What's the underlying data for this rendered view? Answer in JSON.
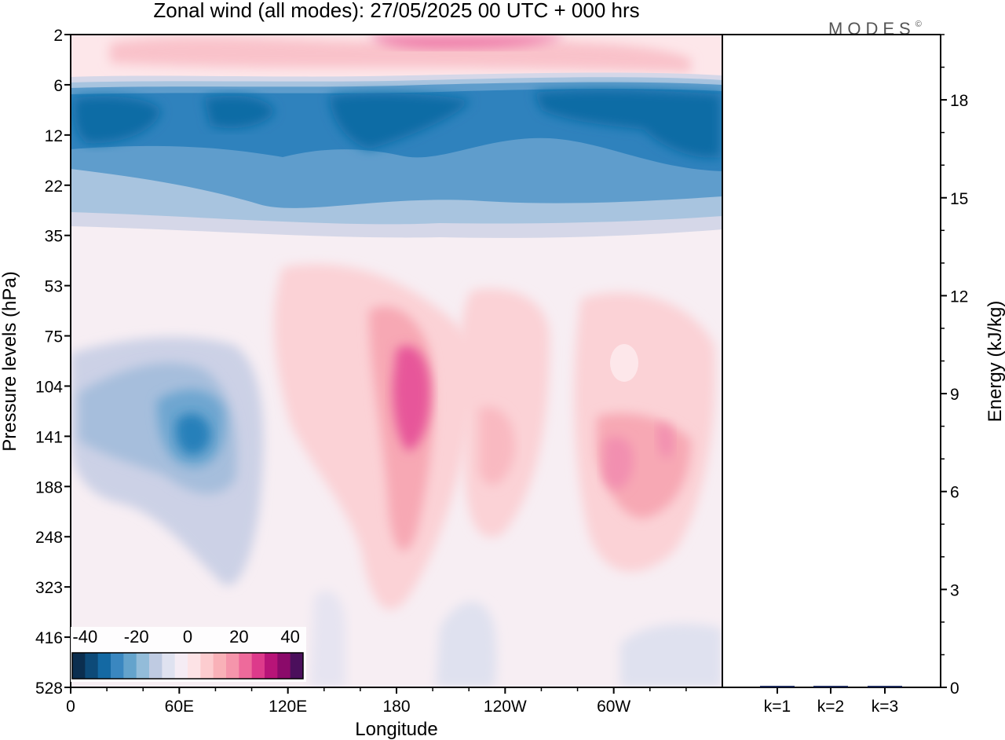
{
  "title": "Zonal wind (all modes):  27/05/2025  00 UTC  + 000 hrs",
  "brand": "MODES",
  "brand_mark": "©",
  "colors": {
    "cb": [
      "#0b2e4f",
      "#0d4a78",
      "#1469a3",
      "#3a87c0",
      "#64a3cc",
      "#93bcd9",
      "#bfcbe2",
      "#dfe2f0",
      "#f5ecf4",
      "#fde3e6",
      "#fccccf",
      "#f9b1b8",
      "#f595ab",
      "#ee6a9b",
      "#dd3a8b",
      "#b81478",
      "#8b0a6a",
      "#4b0f5c"
    ],
    "magenta": "#e7569a",
    "pink_light": "#fde7ea",
    "pink_med": "#f9b9c1",
    "lav": "#ece6f1",
    "frame": "#000000"
  },
  "chart_data": [
    {
      "type": "heatmap",
      "title": "Zonal wind (all modes):  27/05/2025  00 UTC  + 000 hrs",
      "xlabel": "Longitude",
      "ylabel": "Pressure levels (hPa)",
      "x_ticks": [
        "0",
        "60E",
        "120E",
        "180",
        "120W",
        "60W"
      ],
      "x_range_deg": [
        0,
        360
      ],
      "y_ticks": [
        "2",
        "6",
        "12",
        "22",
        "35",
        "53",
        "75",
        "104",
        "141",
        "188",
        "248",
        "323",
        "416",
        "528"
      ],
      "colorbar": {
        "tick_labels": [
          "-40",
          "-20",
          "0",
          "20",
          "40"
        ],
        "range": [
          -45,
          45
        ],
        "step": 5,
        "placement": "bottom-left"
      },
      "features": [
        {
          "name": "easterly jet",
          "levels_hPa": [
            6,
            35
          ],
          "sign": "negative",
          "core_value": -30
        },
        {
          "name": "westerly upper layer",
          "levels_hPa": [
            2,
            6
          ],
          "sign": "positive",
          "core_value": 25
        },
        {
          "name": "easterlies",
          "lon_range": [
            0,
            100
          ],
          "levels_hPa": [
            75,
            323
          ],
          "sign": "negative",
          "core_value": -20
        },
        {
          "name": "westerlies",
          "lon_range": [
            170,
            200
          ],
          "levels_hPa": [
            75,
            248
          ],
          "sign": "positive",
          "core_value": 25
        },
        {
          "name": "westerlies",
          "lon_range": [
            290,
            340
          ],
          "levels_hPa": [
            104,
            248
          ],
          "sign": "positive",
          "core_value": 15
        }
      ]
    },
    {
      "type": "bar",
      "categories": [
        "k=1",
        "k=2",
        "k=3"
      ],
      "values": [
        0.02,
        0.02,
        0.02
      ],
      "ylabel": "Energy (kJ/kg)",
      "y_ticks": [
        "0",
        "3",
        "6",
        "9",
        "12",
        "15",
        "18"
      ],
      "ylim": [
        0,
        20
      ],
      "grid": false
    }
  ]
}
